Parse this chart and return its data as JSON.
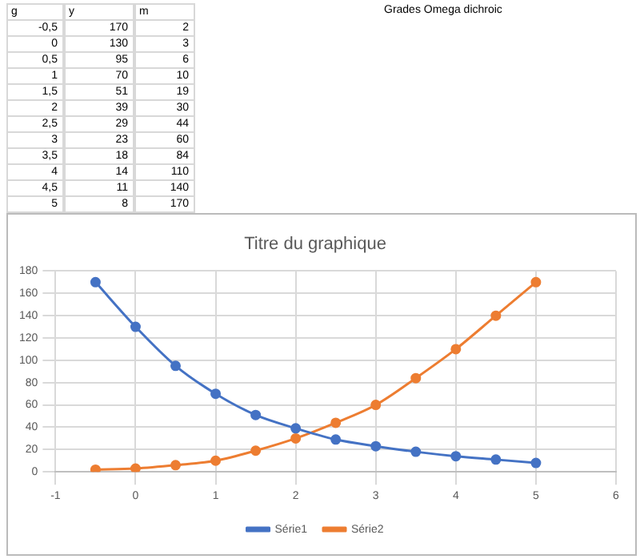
{
  "chart_data": {
    "type": "line",
    "title": "Titre du graphique",
    "x": [
      -0.5,
      0,
      0.5,
      1,
      1.5,
      2,
      2.5,
      3,
      3.5,
      4,
      4.5,
      5
    ],
    "series": [
      {
        "name": "Série1",
        "color": "#4472c4",
        "values": [
          170,
          130,
          95,
          70,
          51,
          39,
          29,
          23,
          18,
          14,
          11,
          8
        ]
      },
      {
        "name": "Série2",
        "color": "#ed7d31",
        "values": [
          2,
          3,
          6,
          10,
          19,
          30,
          44,
          60,
          84,
          110,
          140,
          170
        ]
      }
    ],
    "xlim": [
      -1,
      6
    ],
    "xticks": [
      -1,
      0,
      1,
      2,
      3,
      4,
      5,
      6
    ],
    "ylim": [
      0,
      180
    ],
    "yticks": [
      0,
      20,
      40,
      60,
      80,
      100,
      120,
      140,
      160,
      180
    ],
    "grid": true,
    "legend": "bottom",
    "marker": "circle",
    "line_style": "solid",
    "annotations": [
      "g",
      "-0,5",
      "0",
      "0,5",
      "1",
      "1,5",
      "2",
      "2,5",
      "3",
      "3,5",
      "4",
      "4,5",
      "5",
      "y",
      "170",
      "130",
      "95",
      "70",
      "51",
      "39",
      "29",
      "23",
      "18",
      "14",
      "11",
      "8",
      "m",
      "2",
      "3",
      "6",
      "10",
      "19",
      "30",
      "44",
      "60",
      "84",
      "110",
      "140",
      "170",
      "Grades Omega dichroic"
    ]
  }
}
